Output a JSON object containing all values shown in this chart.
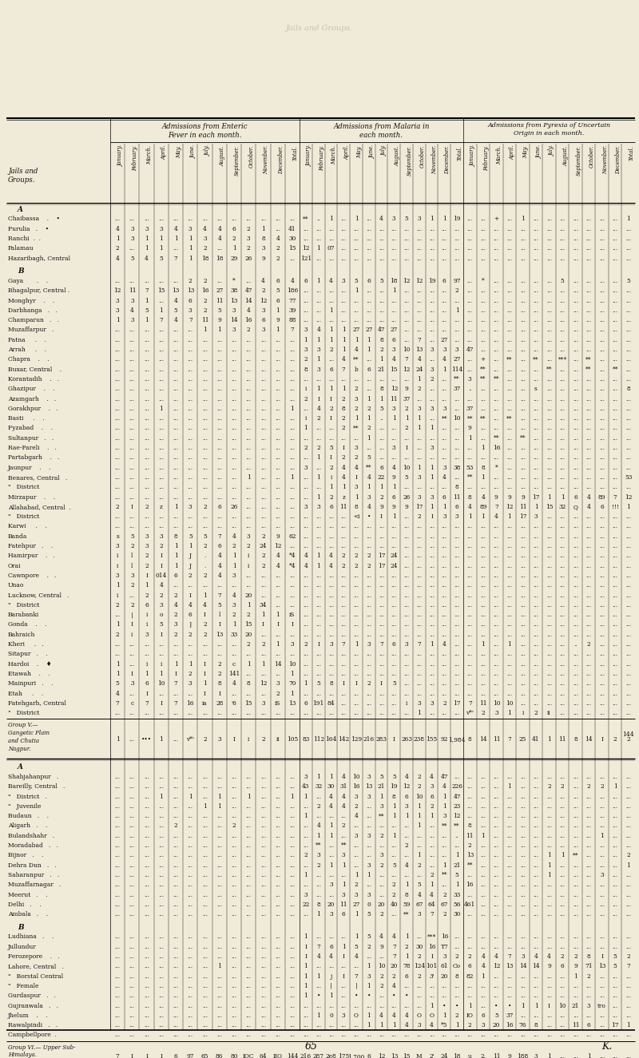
{
  "bg_color": "#f0ead8",
  "text_color": "#111111",
  "header1": "Admissions from Enteric\nFever in each month.",
  "header2": "Admissions from Malaria in\neach month.",
  "header3": "Admissions from Pyrexia of Uncertain\nOrigin in each month.",
  "left_label": "Jails and\nGroups.",
  "months": [
    "January.",
    "February.",
    "March.",
    "April.",
    "May.",
    "June.",
    "July.",
    "August.",
    "September.",
    "October.",
    "November.",
    "December.",
    "Total."
  ],
  "page_num": "65",
  "page_letter": "K."
}
